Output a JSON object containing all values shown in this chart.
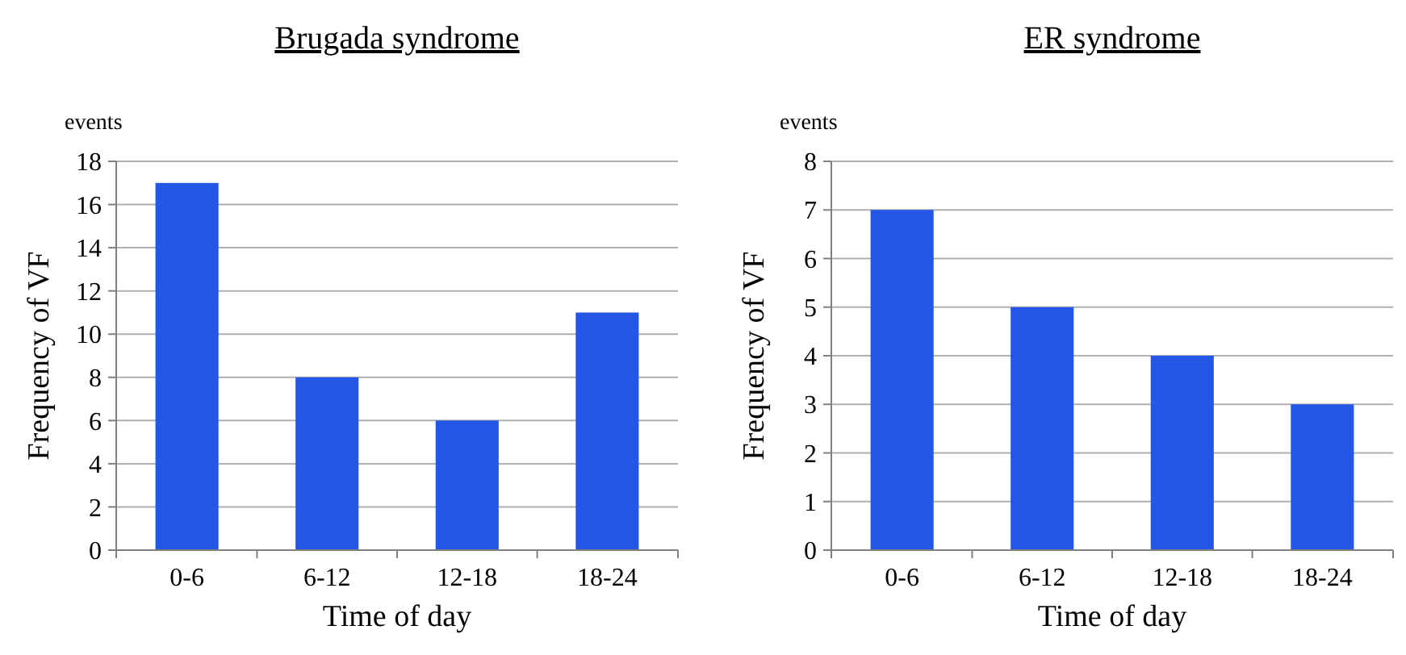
{
  "chart_data": [
    {
      "type": "bar",
      "title": "Brugada syndrome",
      "xlabel": "Time of day",
      "ylabel": "Frequency of VF",
      "annotations": [
        "events"
      ],
      "categories": [
        "0-6",
        "6-12",
        "12-18",
        "18-24"
      ],
      "values": [
        17,
        8,
        6,
        11
      ],
      "color": "#2456e8",
      "ylim": [
        0,
        18
      ],
      "yticks": [
        0,
        2,
        4,
        6,
        8,
        10,
        12,
        14,
        16,
        18
      ],
      "grid": "y"
    },
    {
      "type": "bar",
      "title": "ER syndrome",
      "xlabel": "Time of day",
      "ylabel": "Frequency of VF",
      "annotations": [
        "events"
      ],
      "categories": [
        "0-6",
        "6-12",
        "12-18",
        "18-24"
      ],
      "values": [
        7,
        5,
        4,
        3
      ],
      "color": "#2456e8",
      "ylim": [
        0,
        8
      ],
      "yticks": [
        0,
        1,
        2,
        3,
        4,
        5,
        6,
        7,
        8
      ],
      "grid": "y"
    }
  ]
}
